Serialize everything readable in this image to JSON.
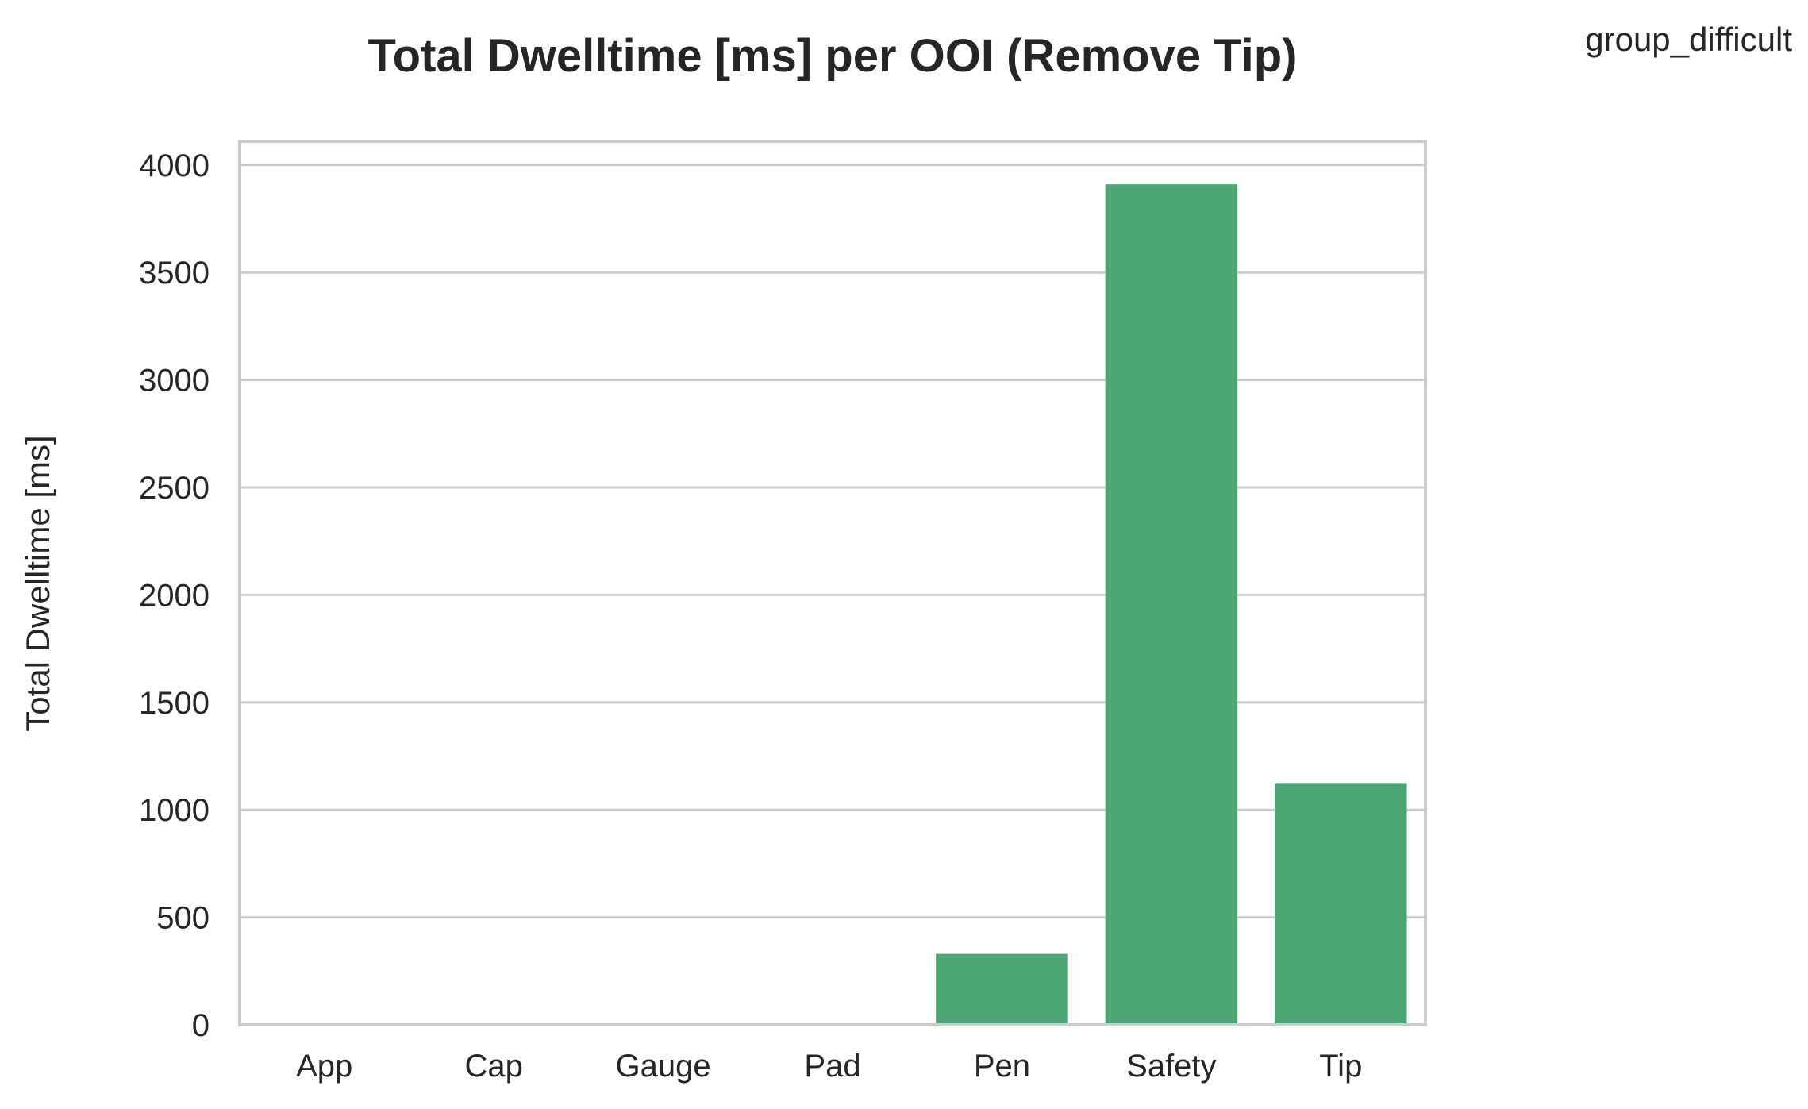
{
  "chart_data": {
    "type": "bar",
    "title": "Total Dwelltime [ms] per OOI (Remove Tip)",
    "xlabel": "",
    "ylabel": "Total Dwelltime [ms]",
    "legend_title": "group_difficult",
    "legend_placement": "top-right, outside plot",
    "categories": [
      "App",
      "Cap",
      "Gauge",
      "Pad",
      "Pen",
      "Safety",
      "Tip"
    ],
    "values": [
      0,
      0,
      0,
      0,
      330,
      3910,
      1125
    ],
    "yticks": [
      0,
      500,
      1000,
      1500,
      2000,
      2500,
      3000,
      3500,
      4000
    ],
    "ylim": [
      0,
      4110
    ],
    "grid": "horizontal",
    "bar_color": "#4ca674",
    "grid_color": "#cccccc"
  }
}
